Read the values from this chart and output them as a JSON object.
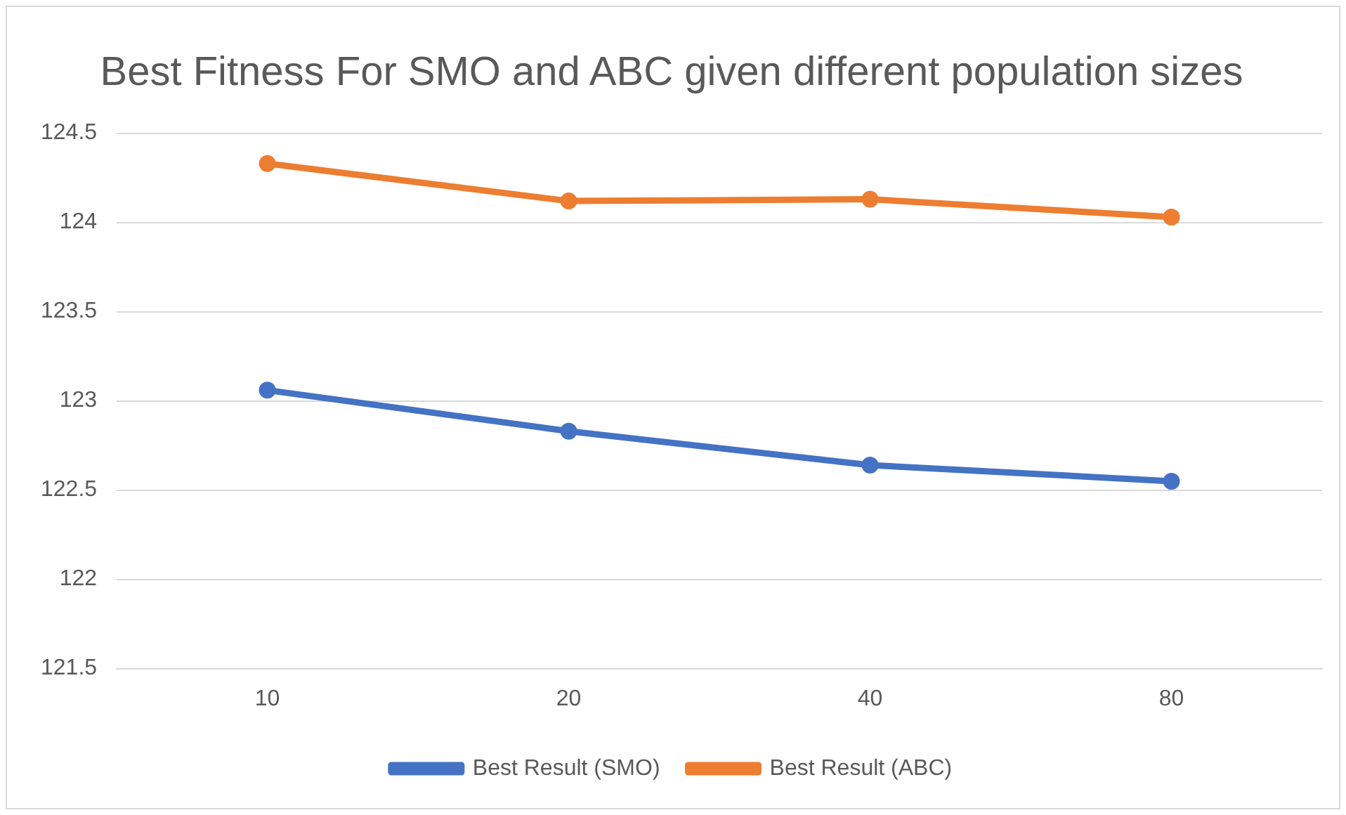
{
  "chart_data": {
    "type": "line",
    "title": "Best Fitness For SMO and ABC given different population sizes",
    "categories": [
      "10",
      "20",
      "40",
      "80"
    ],
    "series": [
      {
        "name": "Best Result (SMO)",
        "color": "#4472c4",
        "values": [
          123.06,
          122.83,
          122.64,
          122.55
        ]
      },
      {
        "name": "Best Result (ABC)",
        "color": "#ed7d31",
        "values": [
          124.33,
          124.12,
          124.13,
          124.03
        ]
      }
    ],
    "ylim": [
      121.5,
      124.5
    ],
    "yticks": [
      121.5,
      122,
      122.5,
      123,
      123.5,
      124,
      124.5
    ],
    "grid": "y",
    "legend": "bottom",
    "marker": "circle",
    "line_style": "solid"
  }
}
